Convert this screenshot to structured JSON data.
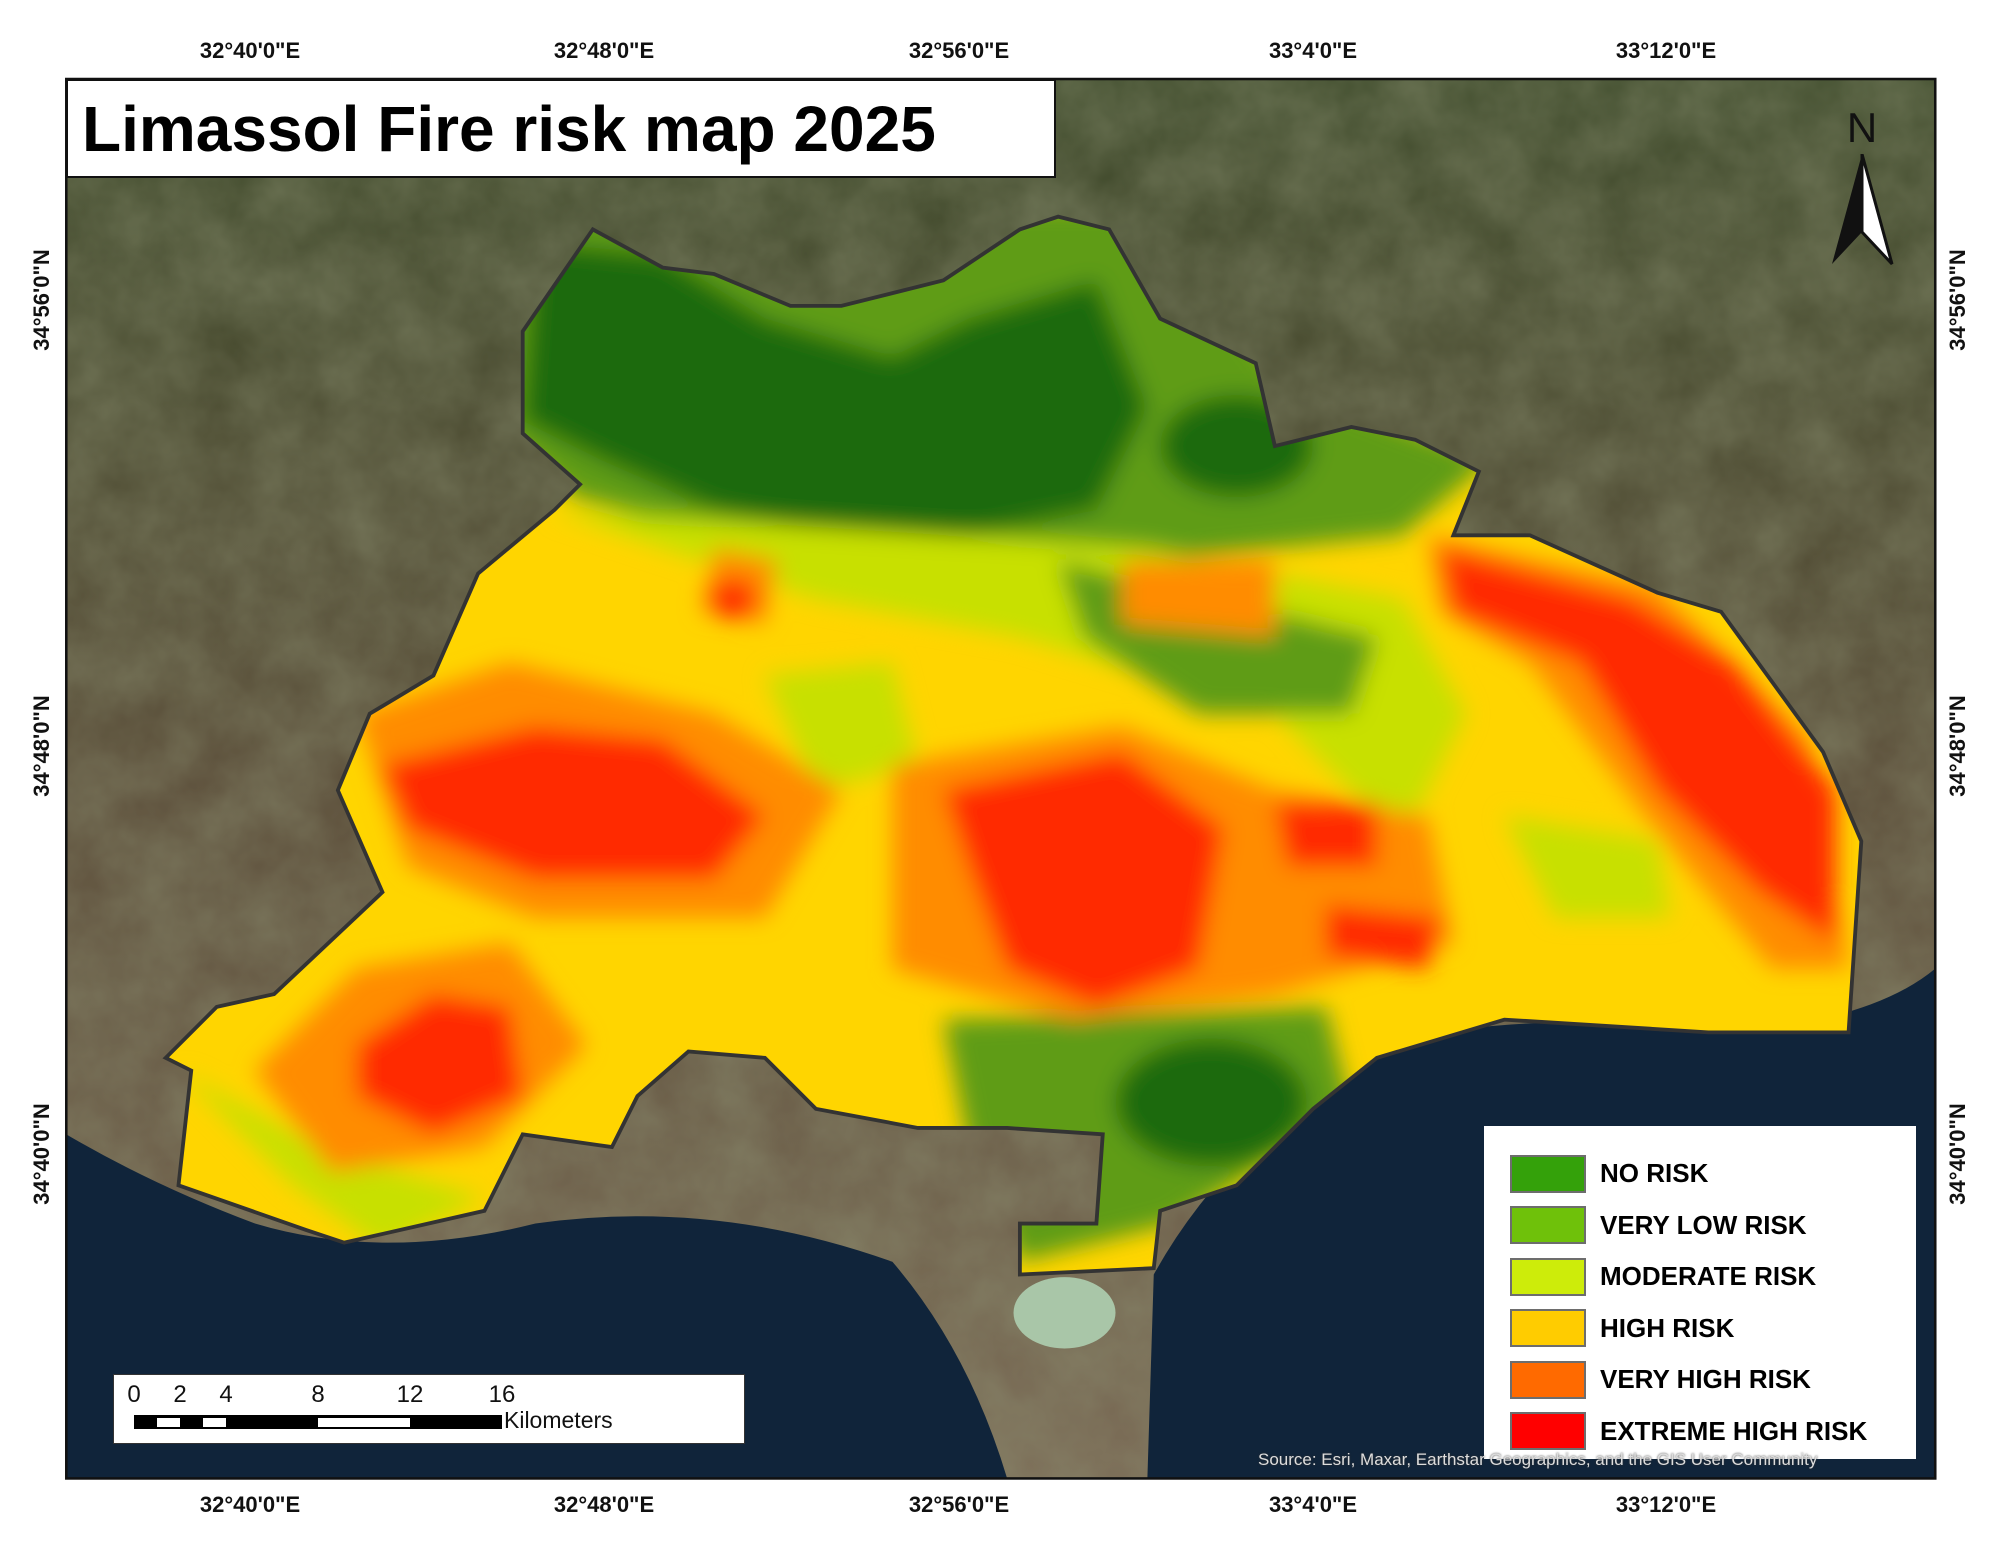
{
  "title": "Limassol Fire risk map 2025",
  "graticule": {
    "longitudes": [
      "32°40'0\"E",
      "32°48'0\"E",
      "32°56'0\"E",
      "33°4'0\"E",
      "33°12'0\"E"
    ],
    "latitudes": [
      "34°56'0\"N",
      "34°48'0\"N",
      "34°40'0\"N"
    ]
  },
  "north_arrow": {
    "label": "N",
    "icon": "north-arrow-icon"
  },
  "legend": {
    "items": [
      {
        "label": "NO RISK",
        "color": "#34a10a"
      },
      {
        "label": "VERY LOW RISK",
        "color": "#6fc10a"
      },
      {
        "label": "MODERATE RISK",
        "color": "#cdec0a"
      },
      {
        "label": "HIGH RISK",
        "color": "#ffcc00"
      },
      {
        "label": "VERY HIGH RISK",
        "color": "#ff6a00"
      },
      {
        "label": "EXTREME HIGH RISK",
        "color": "#ff0000"
      }
    ]
  },
  "scale_bar": {
    "ticks": [
      "0",
      "2",
      "4",
      "8",
      "12",
      "16"
    ],
    "unit": "Kilometers"
  },
  "source": "Source: Esri, Maxar, Earthstar Geographics, and the GIS User Community",
  "colors": {
    "sea": "#0f2236",
    "land": "#4b4630",
    "boundary": "#333333"
  }
}
